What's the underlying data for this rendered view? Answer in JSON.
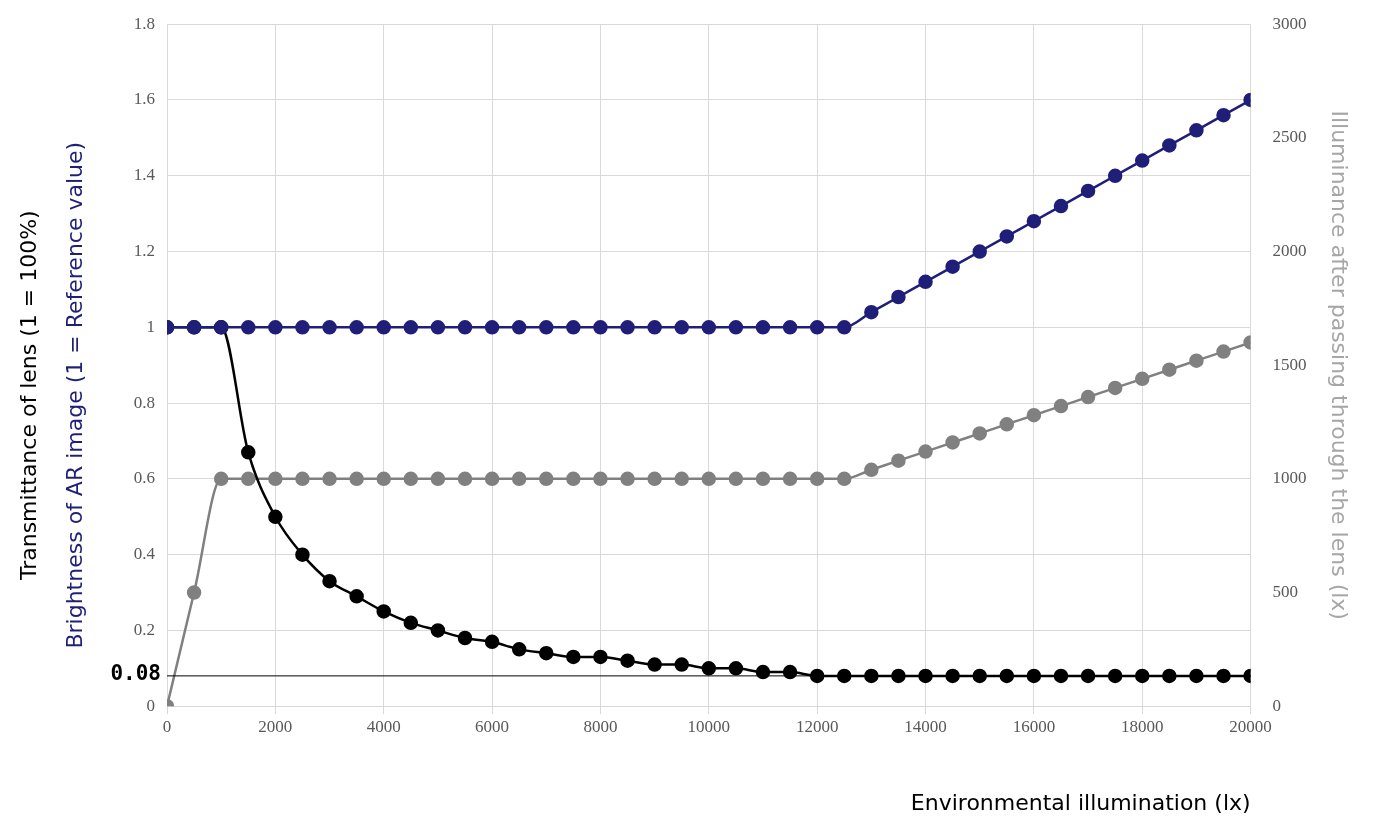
{
  "chart_data": {
    "type": "line",
    "xlabel": "Environmental illumination (lx)",
    "ylabel": [
      "Transmittance of lens (1 = 100%)",
      "Brightness of AR image (1 = Reference value)"
    ],
    "y2label": "Illuminance after passing through the lens (lx)",
    "x": [
      0,
      500,
      1000,
      1500,
      2000,
      2500,
      3000,
      3500,
      4000,
      4500,
      5000,
      5500,
      6000,
      6500,
      7000,
      7500,
      8000,
      8500,
      9000,
      9500,
      10000,
      10500,
      11000,
      11500,
      12000,
      12500,
      13000,
      13500,
      14000,
      14500,
      15000,
      15500,
      16000,
      16500,
      17000,
      17500,
      18000,
      18500,
      19000,
      19500,
      20000
    ],
    "series": [
      {
        "color": "#000000",
        "values": [
          1,
          1,
          1,
          0.67,
          0.5,
          0.4,
          0.33,
          0.29,
          0.25,
          0.22,
          0.2,
          0.18,
          0.17,
          0.15,
          0.14,
          0.13,
          0.13,
          0.12,
          0.11,
          0.11,
          0.1,
          0.1,
          0.09,
          0.09,
          0.08,
          0.08,
          0.08,
          0.08,
          0.08,
          0.08,
          0.08,
          0.08,
          0.08,
          0.08,
          0.08,
          0.08,
          0.08,
          0.08,
          0.08,
          0.08,
          0.08
        ]
      },
      {
        "color": "#1f1f7a",
        "values": [
          1,
          1,
          1,
          1,
          1,
          1,
          1,
          1,
          1,
          1,
          1,
          1,
          1,
          1,
          1,
          1,
          1,
          1,
          1,
          1,
          1,
          1,
          1,
          1,
          1,
          1,
          1.04,
          1.08,
          1.12,
          1.16,
          1.2,
          1.24,
          1.28,
          1.32,
          1.36,
          1.4,
          1.44,
          1.48,
          1.52,
          1.56,
          1.6
        ]
      },
      {
        "color": "#808080",
        "axis": "y2",
        "values": [
          0,
          500,
          1000,
          1000,
          1000,
          1000,
          1000,
          1000,
          1000,
          1000,
          1000,
          1000,
          1000,
          1000,
          1000,
          1000,
          1000,
          1000,
          1000,
          1000,
          1000,
          1000,
          1000,
          1000,
          1000,
          1000,
          1040,
          1080,
          1120,
          1160,
          1200,
          1240,
          1280,
          1320,
          1360,
          1400,
          1440,
          1480,
          1520,
          1560,
          1600
        ]
      }
    ],
    "xlim": [
      0,
      20000
    ],
    "xticks": [
      0,
      2000,
      4000,
      6000,
      8000,
      10000,
      12000,
      14000,
      16000,
      18000,
      20000
    ],
    "ylim": [
      0,
      1.8
    ],
    "yticks": [
      0,
      0.2,
      0.4,
      0.6,
      0.8,
      1,
      1.2,
      1.4,
      1.6,
      1.8
    ],
    "y2lim": [
      0,
      3000
    ],
    "y2ticks": [
      0,
      500,
      1000,
      1500,
      2000,
      2500,
      3000
    ],
    "ref_lines": [
      {
        "axis": "y",
        "value": 0.08,
        "label": "0.08",
        "color": "#000000"
      }
    ],
    "grid": true,
    "legend": false,
    "marker": "circle",
    "line_style": "solid"
  }
}
